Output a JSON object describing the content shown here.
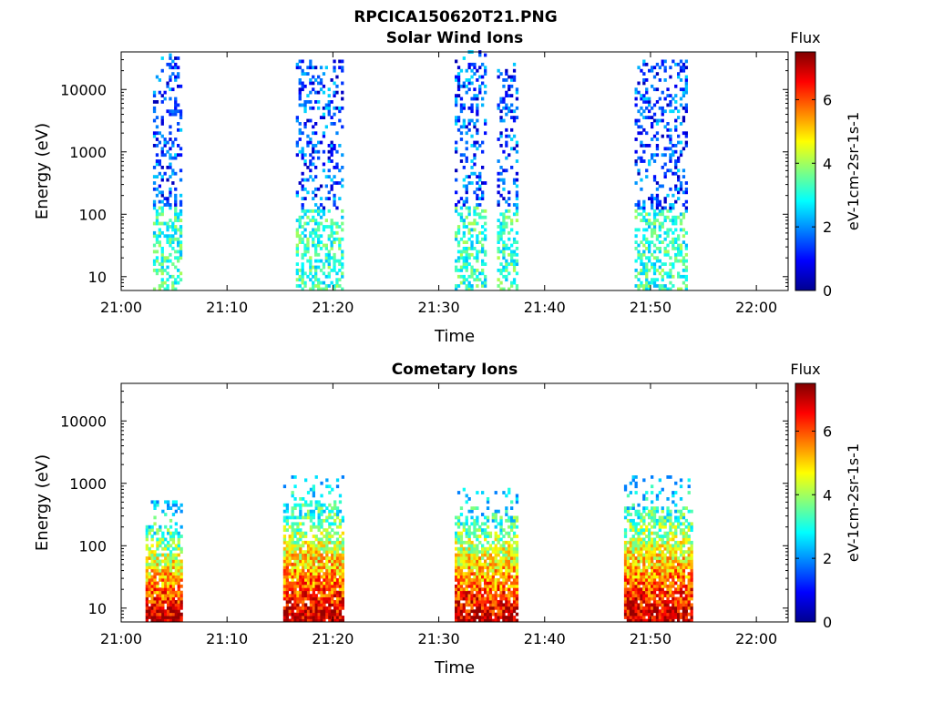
{
  "figure_title": "RPCICA150620T21.PNG",
  "chart_data": [
    {
      "type": "heatmap",
      "title": "Solar Wind Ions",
      "xlabel": "Time",
      "ylabel": "Energy (eV)",
      "x_ticks": [
        "21:00",
        "21:10",
        "21:20",
        "21:30",
        "21:40",
        "21:50",
        "22:00"
      ],
      "x_range_min": [
        0,
        63
      ],
      "y_ticks": [
        10,
        100,
        1000,
        10000
      ],
      "y_tick_labels": [
        "10",
        "100",
        "1000",
        "10000"
      ],
      "y_scale": "log",
      "ylim": [
        6,
        40000
      ],
      "colorbar": {
        "label_top": "Flux",
        "label": "eV-1cm-2sr-1s-1",
        "ticks": [
          "0",
          "2",
          "4",
          "6"
        ],
        "range": [
          0,
          7.5
        ],
        "colormap": "jet"
      },
      "bursts": [
        {
          "t": [
            3,
            5.6
          ],
          "cometary": false,
          "e_hi": 35000
        },
        {
          "t": [
            16.5,
            21
          ],
          "cometary": false,
          "e_hi": 30000
        },
        {
          "t": [
            31.5,
            34.5
          ],
          "cometary": false,
          "e_hi": 40000
        },
        {
          "t": [
            35.5,
            37.5
          ],
          "cometary": false,
          "e_hi": 25000
        },
        {
          "t": [
            48.5,
            53.5
          ],
          "cometary": false,
          "e_hi": 28000
        }
      ]
    },
    {
      "type": "heatmap",
      "title": "Cometary Ions",
      "xlabel": "Time",
      "ylabel": "Energy (eV)",
      "x_ticks": [
        "21:00",
        "21:10",
        "21:20",
        "21:30",
        "21:40",
        "21:50",
        "22:00"
      ],
      "x_range_min": [
        0,
        63
      ],
      "y_ticks": [
        10,
        100,
        1000,
        10000
      ],
      "y_tick_labels": [
        "10",
        "100",
        "1000",
        "10000"
      ],
      "y_scale": "log",
      "ylim": [
        6,
        40000
      ],
      "colorbar": {
        "label_top": "Flux",
        "label": "eV-1cm-2sr-1s-1",
        "ticks": [
          "0",
          "2",
          "4",
          "6"
        ],
        "range": [
          0,
          7.5
        ],
        "colormap": "jet"
      },
      "bursts": [
        {
          "t": [
            2.3,
            5.8
          ],
          "cometary": true,
          "e_hi": 500
        },
        {
          "t": [
            15.3,
            21
          ],
          "cometary": true,
          "e_hi": 1300
        },
        {
          "t": [
            31.5,
            37.5
          ],
          "cometary": true,
          "e_hi": 800
        },
        {
          "t": [
            47.5,
            53.8
          ],
          "cometary": true,
          "e_hi": 1200
        }
      ]
    }
  ]
}
